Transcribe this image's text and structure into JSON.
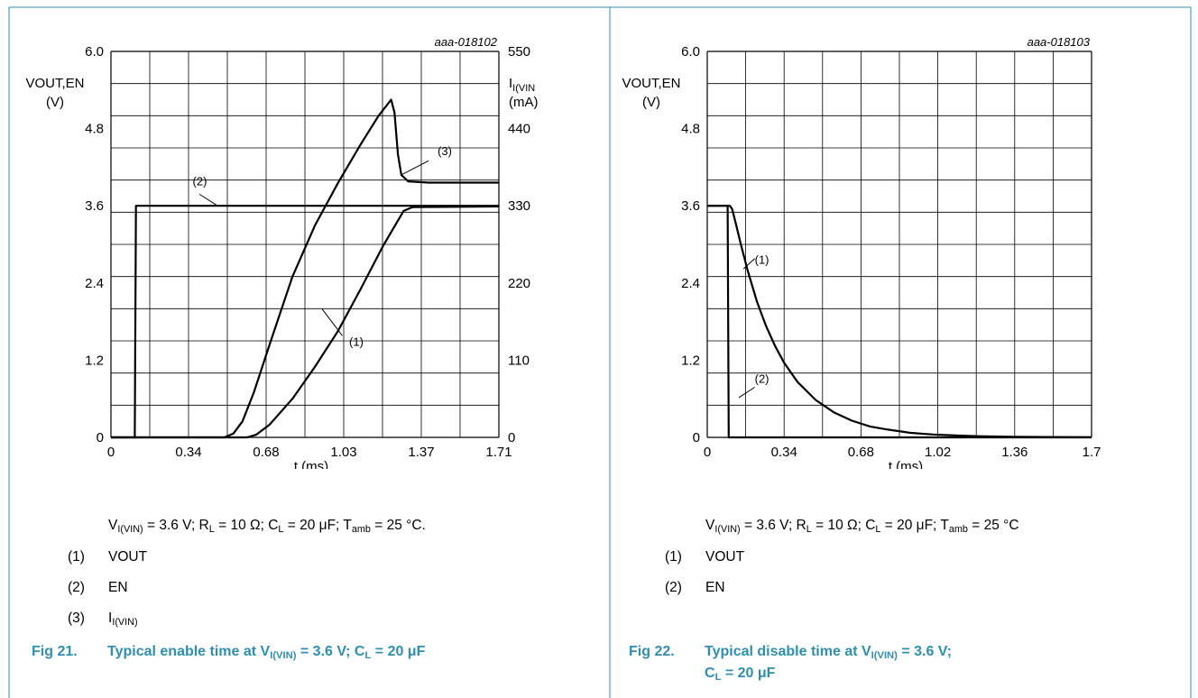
{
  "chart_data": [
    {
      "type": "line",
      "id_label": "aaa-018102",
      "y_left_label": [
        "VOUT,EN",
        "(V)"
      ],
      "y_right_label": [
        "I",
        "I(VIN",
        "(mA)"
      ],
      "xlabel": "t (ms)",
      "x_range": [
        0,
        1.71
      ],
      "y_left_range": [
        0,
        6.0
      ],
      "y_right_range": [
        0,
        550
      ],
      "x_ticks": [
        "0",
        "0.34",
        "0.68",
        "1.03",
        "1.37",
        "1.71"
      ],
      "y_left_ticks": [
        "0",
        "1.2",
        "2.4",
        "3.6",
        "4.8",
        "6.0"
      ],
      "y_right_ticks": [
        "0",
        "110",
        "220",
        "330",
        "440",
        "550"
      ],
      "grid": true,
      "series": [
        {
          "name": "(1)",
          "axis": "left",
          "points": [
            [
              0,
              0
            ],
            [
              0.6,
              0
            ],
            [
              0.64,
              0.04
            ],
            [
              0.7,
              0.2
            ],
            [
              0.8,
              0.6
            ],
            [
              0.9,
              1.1
            ],
            [
              1.0,
              1.65
            ],
            [
              1.1,
              2.3
            ],
            [
              1.2,
              2.98
            ],
            [
              1.29,
              3.52
            ],
            [
              1.33,
              3.58
            ],
            [
              1.71,
              3.59
            ]
          ]
        },
        {
          "name": "(2)",
          "axis": "left",
          "points": [
            [
              0,
              0
            ],
            [
              0.105,
              0
            ],
            [
              0.11,
              3.6
            ],
            [
              1.71,
              3.6
            ]
          ]
        },
        {
          "name": "(3)",
          "axis": "left",
          "points": [
            [
              0,
              0
            ],
            [
              0.5,
              0
            ],
            [
              0.54,
              0.06
            ],
            [
              0.58,
              0.25
            ],
            [
              0.63,
              0.7
            ],
            [
              0.7,
              1.45
            ],
            [
              0.8,
              2.5
            ],
            [
              0.9,
              3.3
            ],
            [
              1.0,
              3.95
            ],
            [
              1.1,
              4.55
            ],
            [
              1.18,
              5.0
            ],
            [
              1.235,
              5.25
            ],
            [
              1.25,
              5.05
            ],
            [
              1.265,
              4.4
            ],
            [
              1.28,
              4.08
            ],
            [
              1.31,
              3.98
            ],
            [
              1.4,
              3.96
            ],
            [
              1.71,
              3.96
            ]
          ]
        }
      ],
      "annotations": [
        {
          "text": "(1)",
          "x": 1.05,
          "y": 1.42
        },
        {
          "text": "(2)",
          "x": 0.36,
          "y": 3.92
        },
        {
          "text": "(3)",
          "x": 1.44,
          "y": 4.39
        }
      ]
    },
    {
      "type": "line",
      "id_label": "aaa-018103",
      "y_left_label": [
        "VOUT,EN",
        "(V)"
      ],
      "xlabel": "t (ms)",
      "x_range": [
        0,
        1.7
      ],
      "y_left_range": [
        0,
        6.0
      ],
      "x_ticks": [
        "0",
        "0.34",
        "0.68",
        "1.02",
        "1.36",
        "1.7"
      ],
      "y_left_ticks": [
        "0",
        "1.2",
        "2.4",
        "3.6",
        "4.8",
        "6.0"
      ],
      "grid": true,
      "series": [
        {
          "name": "(1)",
          "axis": "left",
          "points": [
            [
              0,
              3.6
            ],
            [
              0.1,
              3.6
            ],
            [
              0.11,
              3.55
            ],
            [
              0.13,
              3.27
            ],
            [
              0.15,
              2.98
            ],
            [
              0.18,
              2.58
            ],
            [
              0.22,
              2.11
            ],
            [
              0.26,
              1.73
            ],
            [
              0.3,
              1.42
            ],
            [
              0.34,
              1.16
            ],
            [
              0.4,
              0.86
            ],
            [
              0.48,
              0.58
            ],
            [
              0.56,
              0.39
            ],
            [
              0.64,
              0.26
            ],
            [
              0.72,
              0.17
            ],
            [
              0.8,
              0.12
            ],
            [
              0.9,
              0.07
            ],
            [
              1.0,
              0.045
            ],
            [
              1.1,
              0.03
            ],
            [
              1.2,
              0.018
            ],
            [
              1.35,
              0.01
            ],
            [
              1.5,
              0.005
            ],
            [
              1.7,
              0.002
            ]
          ]
        },
        {
          "name": "(2)",
          "axis": "left",
          "points": [
            [
              0,
              3.6
            ],
            [
              0.09,
              3.6
            ],
            [
              0.095,
              0
            ],
            [
              1.7,
              0
            ]
          ]
        }
      ],
      "annotations": [
        {
          "text": "(1)",
          "x": 0.21,
          "y": 2.7
        },
        {
          "text": "(2)",
          "x": 0.21,
          "y": 0.85
        }
      ]
    }
  ],
  "left_panel": {
    "conditions": {
      "v": "V",
      "v_sub": "I(VIN)",
      "t1": " = 3.6 V; R",
      "r_sub": "L",
      "t2": " = 10 Ω; C",
      "c_sub": "L",
      "t3": " = 20 μF; T",
      "t_sub": "amb",
      "t4": " = 25 °C."
    },
    "legend": [
      {
        "num": "(1)",
        "text": "VOUT",
        "sub": ""
      },
      {
        "num": "(2)",
        "text": "EN",
        "sub": ""
      },
      {
        "num": "(3)",
        "text": "I",
        "sub": "I(VIN)"
      }
    ],
    "caption": {
      "num": "Fig 21.",
      "t1": "Typical enable time at V",
      "sub1": "I(VIN)",
      "t2": " = 3.6 V; C",
      "sub2": "L",
      "t3": " = 20 μF"
    }
  },
  "right_panel": {
    "conditions": {
      "v": "V",
      "v_sub": "I(VIN)",
      "t1": " = 3.6 V; R",
      "r_sub": "L",
      "t2": " = 10 Ω; C",
      "c_sub": "L",
      "t3": " = 20 μF; T",
      "t_sub": "amb",
      "t4": " = 25 °C"
    },
    "legend": [
      {
        "num": "(1)",
        "text": "VOUT",
        "sub": ""
      },
      {
        "num": "(2)",
        "text": "EN",
        "sub": ""
      }
    ],
    "caption": {
      "num": "Fig 22.",
      "t1": "Typical disable time at V",
      "sub1": "I(VIN)",
      "t2": " = 3.6 V;",
      "line2": "C",
      "sub2": "L",
      "t3": " = 20 μF"
    }
  },
  "colors": {
    "frame": "#2e8fb0",
    "caption": "#2e8fb0",
    "curve": "#000000",
    "grid": "#000000"
  }
}
